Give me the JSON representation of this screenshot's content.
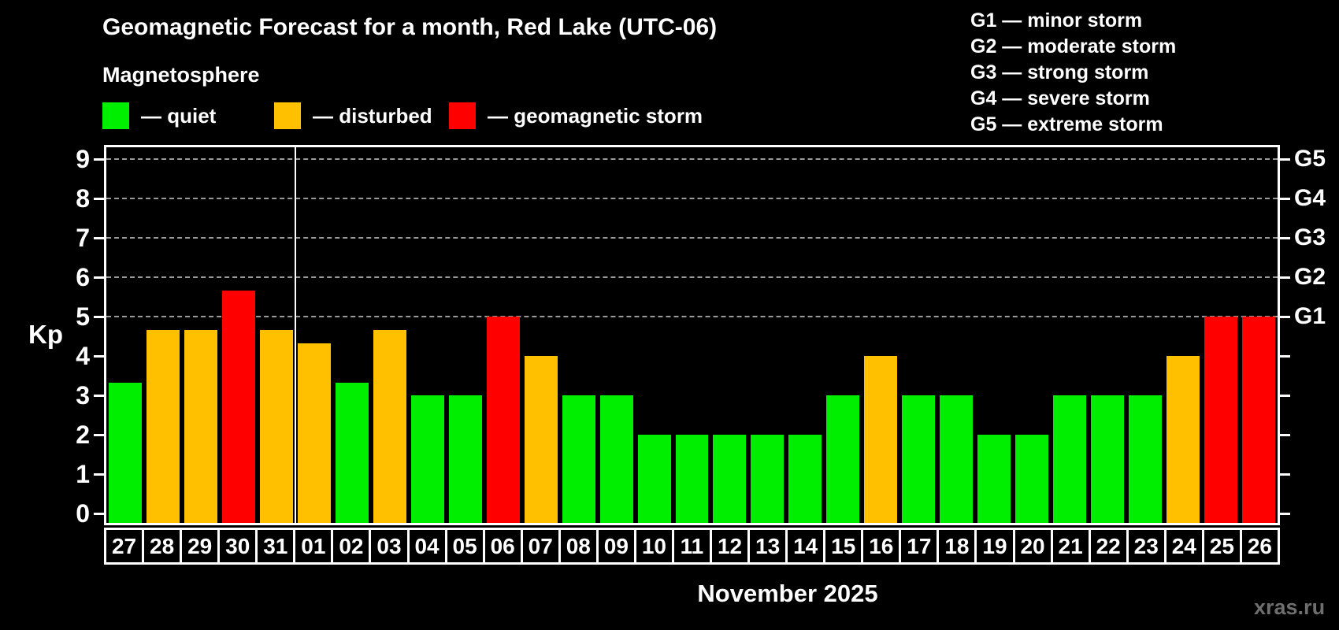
{
  "title": "Geomagnetic Forecast for a month, Red Lake (UTC-06)",
  "subtitle": "Magnetosphere",
  "colors": {
    "quiet": "#00ee00",
    "disturbed": "#ffc000",
    "storm": "#ff0000",
    "grid": "#9a9a9a",
    "axis": "#ffffff",
    "watermark": "#6f6f6f"
  },
  "legend": {
    "quiet_label": "— quiet",
    "disturbed_label": "— disturbed",
    "storm_label": "— geomagnetic storm"
  },
  "g_legend": [
    "G1 — minor storm",
    "G2 — moderate storm",
    "G3 — strong storm",
    "G4 — severe storm",
    "G5 — extreme storm"
  ],
  "axis": {
    "kp_label": "Kp",
    "month_label": "November 2025"
  },
  "watermark": "xras.ru",
  "chart_data": {
    "type": "bar",
    "categories": [
      "27",
      "28",
      "29",
      "30",
      "31",
      "01",
      "02",
      "03",
      "04",
      "05",
      "06",
      "07",
      "08",
      "09",
      "10",
      "11",
      "12",
      "13",
      "14",
      "15",
      "16",
      "17",
      "18",
      "19",
      "20",
      "21",
      "22",
      "23",
      "24",
      "25",
      "26"
    ],
    "values": [
      3.33,
      4.67,
      4.67,
      5.67,
      4.67,
      4.33,
      3.33,
      4.67,
      3,
      3,
      5,
      4,
      3,
      3,
      2,
      2,
      2,
      2,
      2,
      3,
      4,
      3,
      3,
      2,
      2,
      3,
      3,
      3,
      4,
      5,
      5
    ],
    "states": [
      "quiet",
      "disturbed",
      "disturbed",
      "storm",
      "disturbed",
      "disturbed",
      "quiet",
      "disturbed",
      "quiet",
      "quiet",
      "storm",
      "disturbed",
      "quiet",
      "quiet",
      "quiet",
      "quiet",
      "quiet",
      "quiet",
      "quiet",
      "quiet",
      "disturbed",
      "quiet",
      "quiet",
      "quiet",
      "quiet",
      "quiet",
      "quiet",
      "quiet",
      "disturbed",
      "storm",
      "storm"
    ],
    "title": "Geomagnetic Forecast for a month, Red Lake (UTC-06)",
    "xlabel": "November 2025",
    "ylabel": "Kp",
    "ylim": [
      0,
      9
    ],
    "y_ticks": [
      0,
      1,
      2,
      3,
      4,
      5,
      6,
      7,
      8,
      9
    ],
    "gridlines_at": [
      5,
      6,
      7,
      8,
      9
    ],
    "right_axis": [
      {
        "label": "G1",
        "value": 5
      },
      {
        "label": "G2",
        "value": 6
      },
      {
        "label": "G3",
        "value": 7
      },
      {
        "label": "G4",
        "value": 8
      },
      {
        "label": "G5",
        "value": 9
      }
    ],
    "month_separator_after_index": 4,
    "legend_position": "top-left",
    "grid": "dashed-horizontal"
  }
}
